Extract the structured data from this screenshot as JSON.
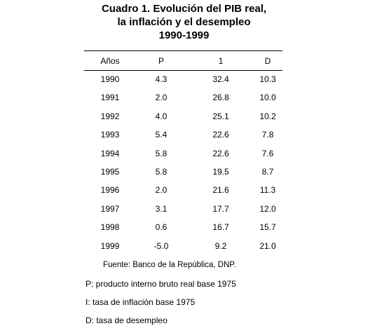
{
  "title": {
    "lines": [
      "Cuadro 1. Evolución del PIB real,",
      "la inflación y el desempleo",
      "1990-1999"
    ]
  },
  "table": {
    "header": [
      "Años",
      "P",
      "1",
      "D"
    ],
    "rows": [
      [
        "1990",
        "4.3",
        "32.4",
        "10.3"
      ],
      [
        "1991",
        "2.0",
        "26.8",
        "10.0"
      ],
      [
        "1992",
        "4.0",
        "25.1",
        "10.2"
      ],
      [
        "1993",
        "5.4",
        "22.6",
        "7.8"
      ],
      [
        "1994",
        "5.8",
        "22.6",
        "7.6"
      ],
      [
        "1995",
        "5.8",
        "19.5",
        "8.7"
      ],
      [
        "1996",
        "2.0",
        "21.6",
        "11.3"
      ],
      [
        "1997",
        "3.1",
        "17.7",
        "12.0"
      ],
      [
        "1998",
        "0.6",
        "16.7",
        "15.7"
      ],
      [
        "1999",
        "-5.0",
        "9.2",
        "21.0"
      ]
    ]
  },
  "source": "Fuente: Banco de la República, DNP.",
  "notes": [
    "P: producto interno bruto real base 1975",
    "I: tasa de inflación base 1975",
    "D: tasa de desempleo"
  ]
}
